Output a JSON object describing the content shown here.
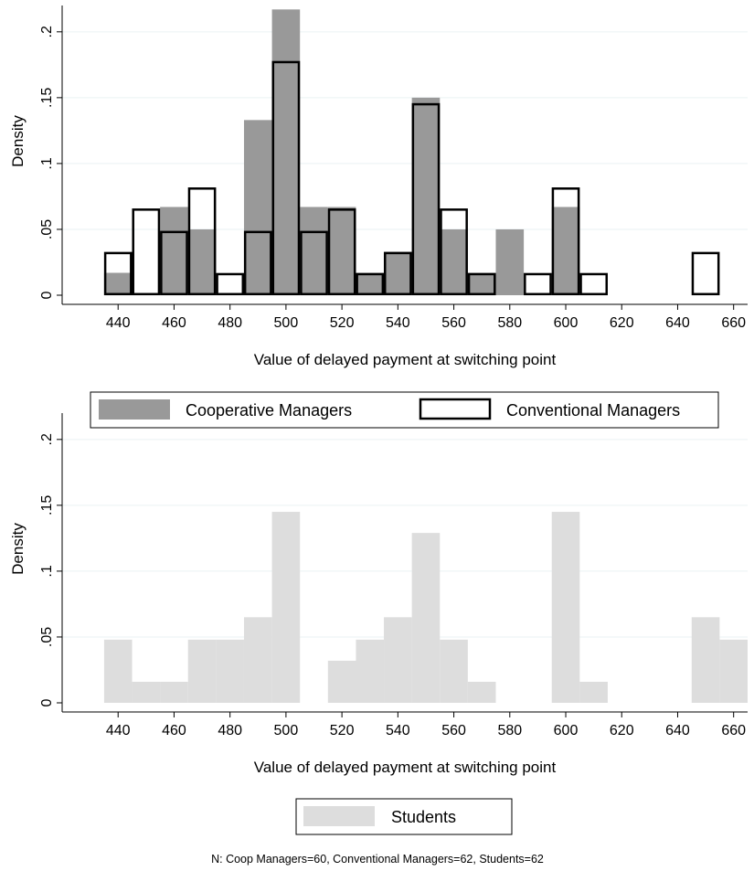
{
  "note": "N: Coop Managers=60, Conventional Managers=62, Students=62",
  "chart_data": [
    {
      "type": "bar",
      "subtype": "overlaid-histogram",
      "xlabel": "Value of delayed payment at switching point",
      "ylabel": "Density",
      "xlim": [
        420,
        665
      ],
      "ylim": [
        0,
        0.22
      ],
      "xticks": [
        440,
        460,
        480,
        500,
        520,
        540,
        560,
        580,
        600,
        620,
        640,
        660
      ],
      "yticks": [
        0,
        0.05,
        0.1,
        0.15,
        0.2
      ],
      "ytick_labels": [
        "0",
        ".05",
        ".1",
        ".15",
        ".2"
      ],
      "bin_width": 10,
      "grid": true,
      "legend_position": "bottom",
      "series": [
        {
          "name": "Cooperative Managers",
          "style": "filled",
          "color": "#999999",
          "bin_centers": [
            440,
            450,
            460,
            470,
            480,
            490,
            500,
            510,
            520,
            530,
            540,
            550,
            560,
            570,
            580,
            590,
            600,
            610,
            620,
            630,
            640,
            650
          ],
          "values": [
            0.017,
            0,
            0.067,
            0.05,
            0,
            0.133,
            0.217,
            0.067,
            0.067,
            0.017,
            0.033,
            0.15,
            0.05,
            0.017,
            0.05,
            0,
            0.067,
            0,
            0,
            0,
            0,
            0
          ]
        },
        {
          "name": "Conventional Managers",
          "style": "outline",
          "color": "#000000",
          "bin_centers": [
            440,
            450,
            460,
            470,
            480,
            490,
            500,
            510,
            520,
            530,
            540,
            550,
            560,
            570,
            580,
            590,
            600,
            610,
            620,
            630,
            640,
            650
          ],
          "values": [
            0.032,
            0.065,
            0.048,
            0.081,
            0.016,
            0.048,
            0.177,
            0.048,
            0.065,
            0.016,
            0.032,
            0.145,
            0.065,
            0.016,
            0,
            0.016,
            0.081,
            0.016,
            0,
            0,
            0,
            0.032
          ]
        }
      ]
    },
    {
      "type": "bar",
      "subtype": "histogram",
      "xlabel": "Value of delayed payment at switching point",
      "ylabel": "Density",
      "xlim": [
        420,
        665
      ],
      "ylim": [
        0,
        0.22
      ],
      "xticks": [
        440,
        460,
        480,
        500,
        520,
        540,
        560,
        580,
        600,
        620,
        640,
        660
      ],
      "yticks": [
        0,
        0.05,
        0.1,
        0.15,
        0.2
      ],
      "ytick_labels": [
        "0",
        ".05",
        ".1",
        ".15",
        ".2"
      ],
      "bin_width": 10,
      "grid": true,
      "legend_position": "bottom",
      "series": [
        {
          "name": "Students",
          "style": "filled",
          "color": "#dddddd",
          "bin_centers": [
            440,
            450,
            460,
            470,
            480,
            490,
            500,
            510,
            520,
            530,
            540,
            550,
            560,
            570,
            580,
            590,
            600,
            610,
            620,
            630,
            640,
            650,
            660
          ],
          "values": [
            0.048,
            0.016,
            0.016,
            0.048,
            0.048,
            0.065,
            0.145,
            0,
            0.032,
            0.048,
            0.065,
            0.129,
            0.048,
            0.016,
            0,
            0,
            0.145,
            0.016,
            0,
            0,
            0,
            0.065,
            0.048
          ]
        }
      ]
    }
  ]
}
